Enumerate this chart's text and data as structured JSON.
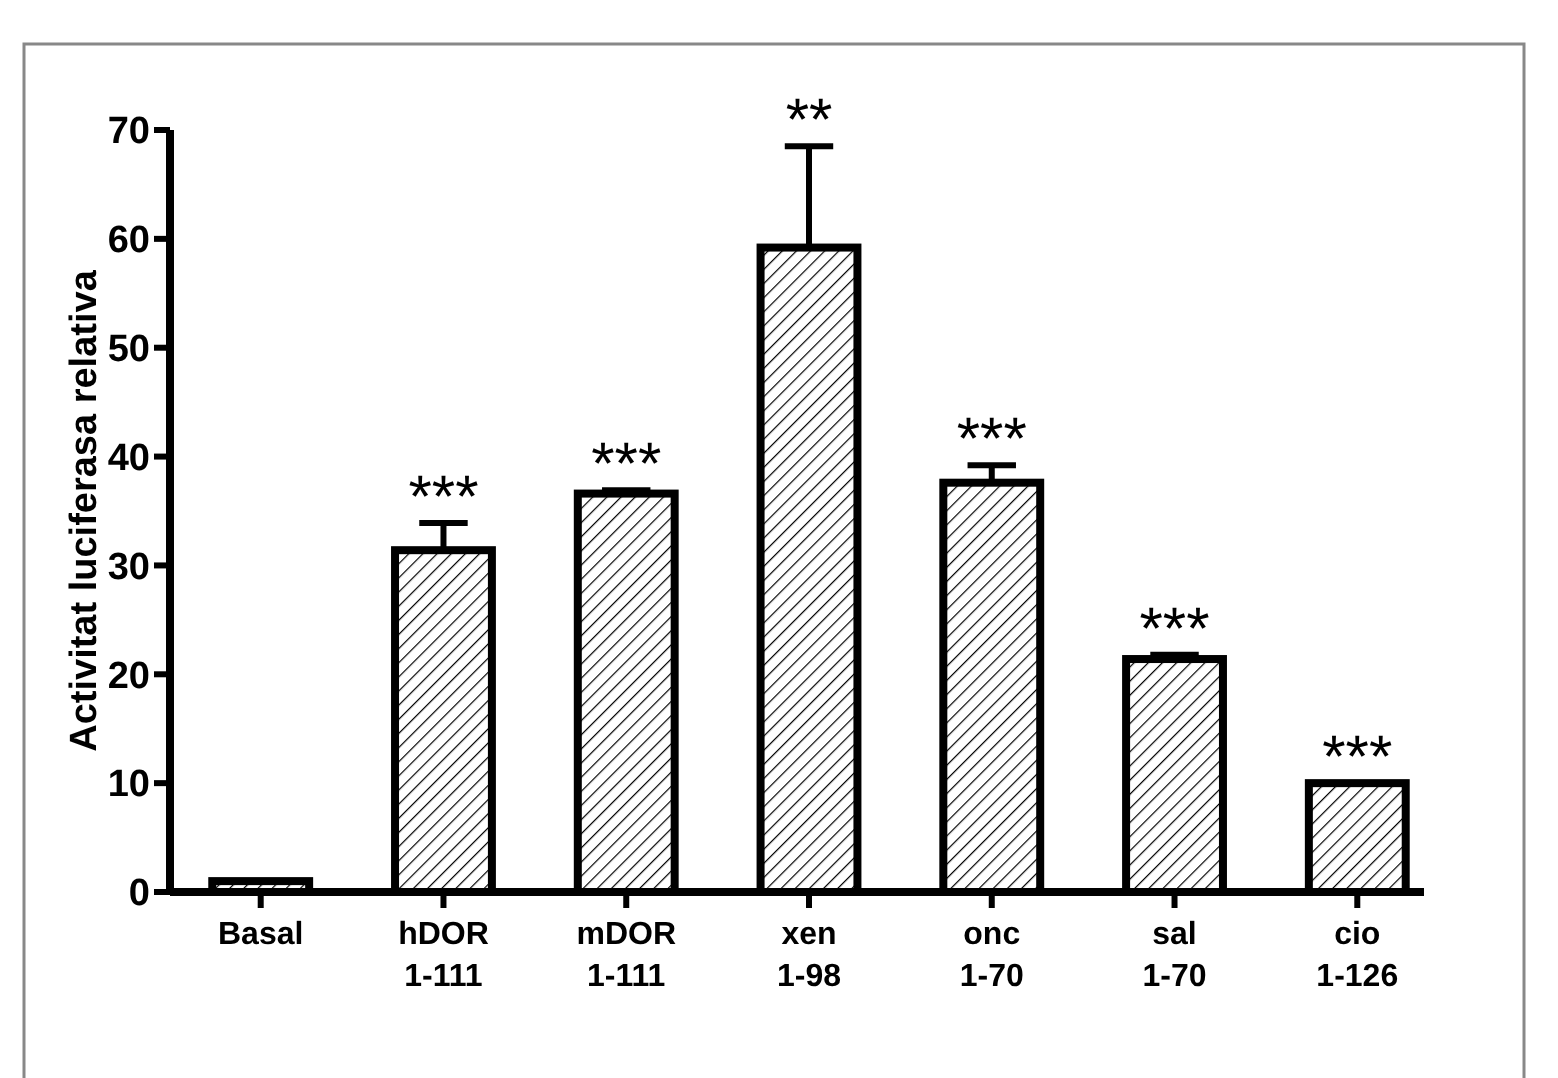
{
  "chart_data": {
    "type": "bar",
    "ylabel": "Activitat luciferasa relativa",
    "categories": [
      "Basal",
      "hDOR\n1-111",
      "mDOR\n1-111",
      "xen\n1-98",
      "onc\n1-70",
      "sal\n1-70",
      "cio\n1-126"
    ],
    "values": [
      1.0,
      31.4,
      36.6,
      59.2,
      37.6,
      21.4,
      10.0
    ],
    "errors": [
      null,
      2.5,
      0.3,
      9.3,
      1.6,
      0.4,
      null
    ],
    "color": "#000000",
    "ylim": [
      0,
      70
    ],
    "yticks": [
      0,
      10,
      20,
      30,
      40,
      50,
      60,
      70
    ],
    "grid": false,
    "annotations": [
      {
        "text": "***",
        "x": "hDOR\n1-111",
        "y": 33.9
      },
      {
        "text": "***",
        "x": "mDOR\n1-111",
        "y": 36.9
      },
      {
        "text": "**",
        "x": "xen\n1-98",
        "y": 68.5
      },
      {
        "text": "***",
        "x": "onc\n1-70",
        "y": 39.2
      },
      {
        "text": "***",
        "x": "sal\n1-70",
        "y": 21.8
      },
      {
        "text": "***",
        "x": "cio\n1-126",
        "y": 10.0
      }
    ]
  }
}
